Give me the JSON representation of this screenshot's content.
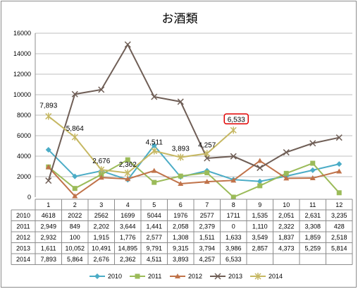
{
  "chart_data": {
    "type": "line",
    "title": "お酒類",
    "categories": [
      "1",
      "2",
      "3",
      "4",
      "5",
      "6",
      "7",
      "8",
      "9",
      "10",
      "11",
      "12"
    ],
    "ylim": [
      0,
      16000
    ],
    "yticks": [
      "0",
      "2000",
      "4000",
      "6000",
      "8000",
      "10000",
      "12000",
      "14000",
      "16000"
    ],
    "grid": true,
    "legend_position": "bottom",
    "series": [
      {
        "name": "2010",
        "color": "#4bacc6",
        "marker": "diamond",
        "values": [
          4618,
          2022,
          2562,
          1699,
          5044,
          1976,
          2577,
          1711,
          1535,
          2051,
          2631,
          3235
        ],
        "table": [
          "4618",
          "2022",
          "2562",
          "1699",
          "5044",
          "1976",
          "2577",
          "1711",
          "1,535",
          "2,051",
          "2,631",
          "3,235"
        ]
      },
      {
        "name": "2011",
        "color": "#9bbb59",
        "marker": "square",
        "values": [
          2949,
          849,
          2202,
          3644,
          1441,
          2058,
          2379,
          0,
          1110,
          2322,
          3308,
          428
        ],
        "table": [
          "2,949",
          "849",
          "2,202",
          "3,644",
          "1,441",
          "2,058",
          "2,379",
          "0",
          "1,110",
          "2,322",
          "3,308",
          "428"
        ]
      },
      {
        "name": "2012",
        "color": "#c0734a",
        "marker": "triangle",
        "values": [
          2932,
          100,
          1915,
          1776,
          2577,
          1308,
          1511,
          1633,
          3549,
          1837,
          1859,
          2518
        ],
        "table": [
          "2,932",
          "100",
          "1,915",
          "1,776",
          "2,577",
          "1,308",
          "1,511",
          "1,633",
          "3,549",
          "1,837",
          "1,859",
          "2,518"
        ]
      },
      {
        "name": "2013",
        "color": "#6f5e56",
        "marker": "x",
        "values": [
          1611,
          10052,
          10491,
          14895,
          9791,
          9315,
          3794,
          3986,
          2857,
          4373,
          5259,
          5814
        ],
        "table": [
          "1,611",
          "10,052",
          "10,491",
          "14,895",
          "9,791",
          "9,315",
          "3,794",
          "3,986",
          "2,857",
          "4,373",
          "5,259",
          "5,814"
        ]
      },
      {
        "name": "2014",
        "color": "#c6b863",
        "marker": "star",
        "values": [
          7893,
          5864,
          2676,
          2362,
          4511,
          3893,
          4257,
          6533,
          null,
          null,
          null,
          null
        ],
        "table": [
          "7,893",
          "5,864",
          "2,676",
          "2,362",
          "4,511",
          "3,893",
          "4,257",
          "6,533",
          "",
          "",
          "",
          ""
        ],
        "data_labels": [
          "7,893",
          "5,864",
          "2,676",
          "2,362",
          "4,511",
          "3,893",
          "4,257",
          "6,533"
        ],
        "highlight_index": 7,
        "highlight_color": "#e00000"
      }
    ]
  }
}
